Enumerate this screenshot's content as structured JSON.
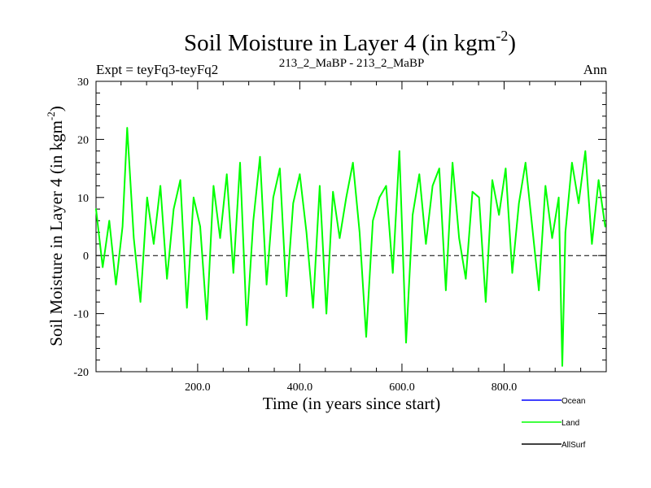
{
  "chart_data": {
    "type": "line",
    "title": "Soil Moisture in Layer 4 (in kgm",
    "title_sup": "-2",
    "title_close": ")",
    "subtitle_left": "Expt = teyFq3-teyFq2",
    "subtitle_center": "213_2_MaBP - 213_2_MaBP",
    "subtitle_right": "Ann",
    "xlabel": "Time (in years since start)",
    "ylabel": "Soil Moisture in Layer 4 (in kgm",
    "ylabel_sup": "-2",
    "ylabel_close": ")",
    "xlim": [
      1,
      1000
    ],
    "ylim": [
      -20,
      30
    ],
    "x_ticks": [
      200,
      400,
      600,
      800
    ],
    "x_tick_labels": [
      "200.0",
      "400.0",
      "600.0",
      "800.0"
    ],
    "y_ticks": [
      -20,
      -10,
      0,
      10,
      20,
      30
    ],
    "y_tick_labels": [
      "-20",
      "-10",
      "0",
      "10",
      "20",
      "30"
    ],
    "zero_line": true,
    "series": [
      {
        "name": "Land",
        "color": "#00ff00",
        "x": [
          1,
          14,
          27,
          40,
          53,
          62,
          75,
          88,
          101,
          114,
          127,
          140,
          153,
          166,
          179,
          192,
          205,
          218,
          231,
          244,
          257,
          270,
          283,
          296,
          309,
          322,
          335,
          348,
          361,
          374,
          387,
          400,
          413,
          426,
          439,
          452,
          465,
          478,
          491,
          504,
          517,
          530,
          543,
          556,
          569,
          582,
          595,
          608,
          621,
          634,
          647,
          660,
          673,
          686,
          699,
          712,
          725,
          738,
          751,
          764,
          777,
          790,
          803,
          816,
          829,
          842,
          855,
          868,
          881,
          894,
          907,
          914,
          920,
          933,
          946,
          959,
          972,
          985,
          998
        ],
        "values": [
          8,
          -2,
          6,
          -5,
          5,
          22,
          3,
          -8,
          10,
          2,
          12,
          -4,
          8,
          13,
          -9,
          10,
          5,
          -11,
          12,
          3,
          14,
          -3,
          16,
          -12,
          6,
          17,
          -5,
          10,
          15,
          -7,
          9,
          14,
          4,
          -9,
          12,
          -10,
          11,
          3,
          10,
          16,
          4,
          -14,
          6,
          10,
          12,
          -3,
          18,
          -15,
          7,
          14,
          2,
          12,
          15,
          -6,
          16,
          3,
          -4,
          11,
          10,
          -8,
          13,
          7,
          15,
          -3,
          9,
          16,
          5,
          -6,
          12,
          3,
          10,
          -19,
          4,
          16,
          9,
          18,
          2,
          13,
          5
        ]
      },
      {
        "name": "Ocean",
        "color": "#0000ff",
        "values": []
      },
      {
        "name": "AllSurf",
        "color": "#000000",
        "values": []
      }
    ],
    "legend": [
      {
        "name": "Ocean",
        "color": "#0000ff"
      },
      {
        "name": "Land",
        "color": "#00ff00"
      },
      {
        "name": "AllSurf",
        "color": "#000000"
      }
    ]
  }
}
